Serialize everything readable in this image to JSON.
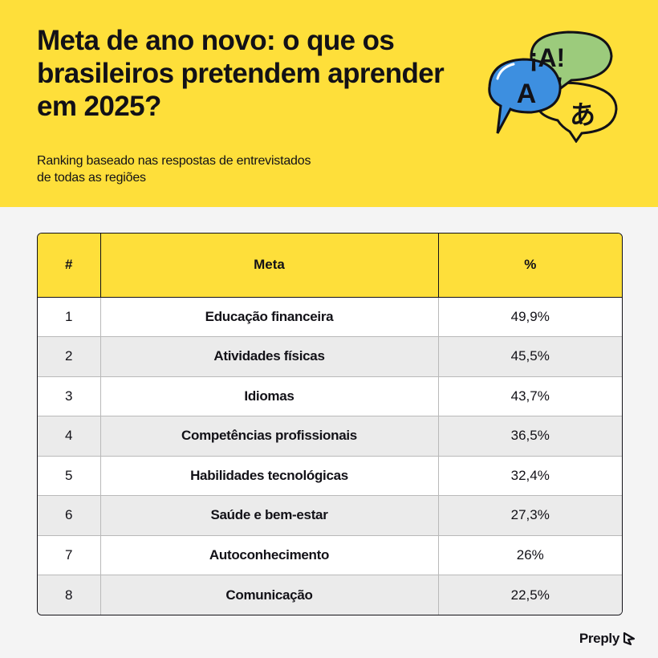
{
  "header": {
    "title": "Meta de ano novo: o que os brasileiros pretendem aprender em 2025?",
    "subtitle": "Ranking baseado nas respostas de entrevistados de todas as regiões",
    "illustration": {
      "bubble_texts": [
        "¡A!",
        "A",
        "あ"
      ],
      "colors": {
        "green": "#9ccb7c",
        "blue": "#3d8fe0",
        "yellow": "#fedf3a"
      }
    }
  },
  "table": {
    "headers": [
      "#",
      "Meta",
      "%"
    ],
    "rows": [
      {
        "rank": "1",
        "goal": "Educação financeira",
        "pct": "49,9%"
      },
      {
        "rank": "2",
        "goal": "Atividades físicas",
        "pct": "45,5%"
      },
      {
        "rank": "3",
        "goal": "Idiomas",
        "pct": "43,7%"
      },
      {
        "rank": "4",
        "goal": "Competências profissionais",
        "pct": "36,5%"
      },
      {
        "rank": "5",
        "goal": "Habilidades tecnológicas",
        "pct": "32,4%"
      },
      {
        "rank": "6",
        "goal": "Saúde e bem-estar",
        "pct": "27,3%"
      },
      {
        "rank": "7",
        "goal": "Autoconhecimento",
        "pct": "26%"
      },
      {
        "rank": "8",
        "goal": "Comunicação",
        "pct": "22,5%"
      }
    ]
  },
  "brand": {
    "name": "Preply",
    "icon": "preply-logo-icon"
  },
  "colors": {
    "accent": "#fedf3a",
    "text": "#121117",
    "background": "#f4f4f4",
    "row_alt": "#ebebeb"
  }
}
